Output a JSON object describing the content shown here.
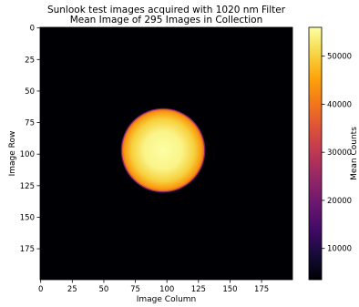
{
  "chart_data": {
    "type": "heatmap",
    "title": "Sunlook test images acquired with  1020 nm Filter",
    "subtitle": "Mean Image of 295 Images in Collection",
    "xlabel": "Image Column",
    "ylabel": "Image Row",
    "colorbar_label": "Mean Counts",
    "colormap": "inferno",
    "image_shape": [
      200,
      200
    ],
    "xlim": [
      0,
      199
    ],
    "ylim": [
      199,
      0
    ],
    "xticks": [
      0,
      25,
      50,
      75,
      100,
      125,
      150,
      175
    ],
    "yticks": [
      0,
      25,
      50,
      75,
      100,
      125,
      150,
      175
    ],
    "colorbar_range": [
      3500,
      56000
    ],
    "colorbar_ticks": [
      10000,
      20000,
      30000,
      40000,
      50000
    ],
    "features": [
      {
        "name": "solar disk",
        "center": [
          97,
          97
        ],
        "radius": 33,
        "peak_value": 56000,
        "edge_value": 35000,
        "background_value": 3500
      }
    ],
    "grid": false
  }
}
